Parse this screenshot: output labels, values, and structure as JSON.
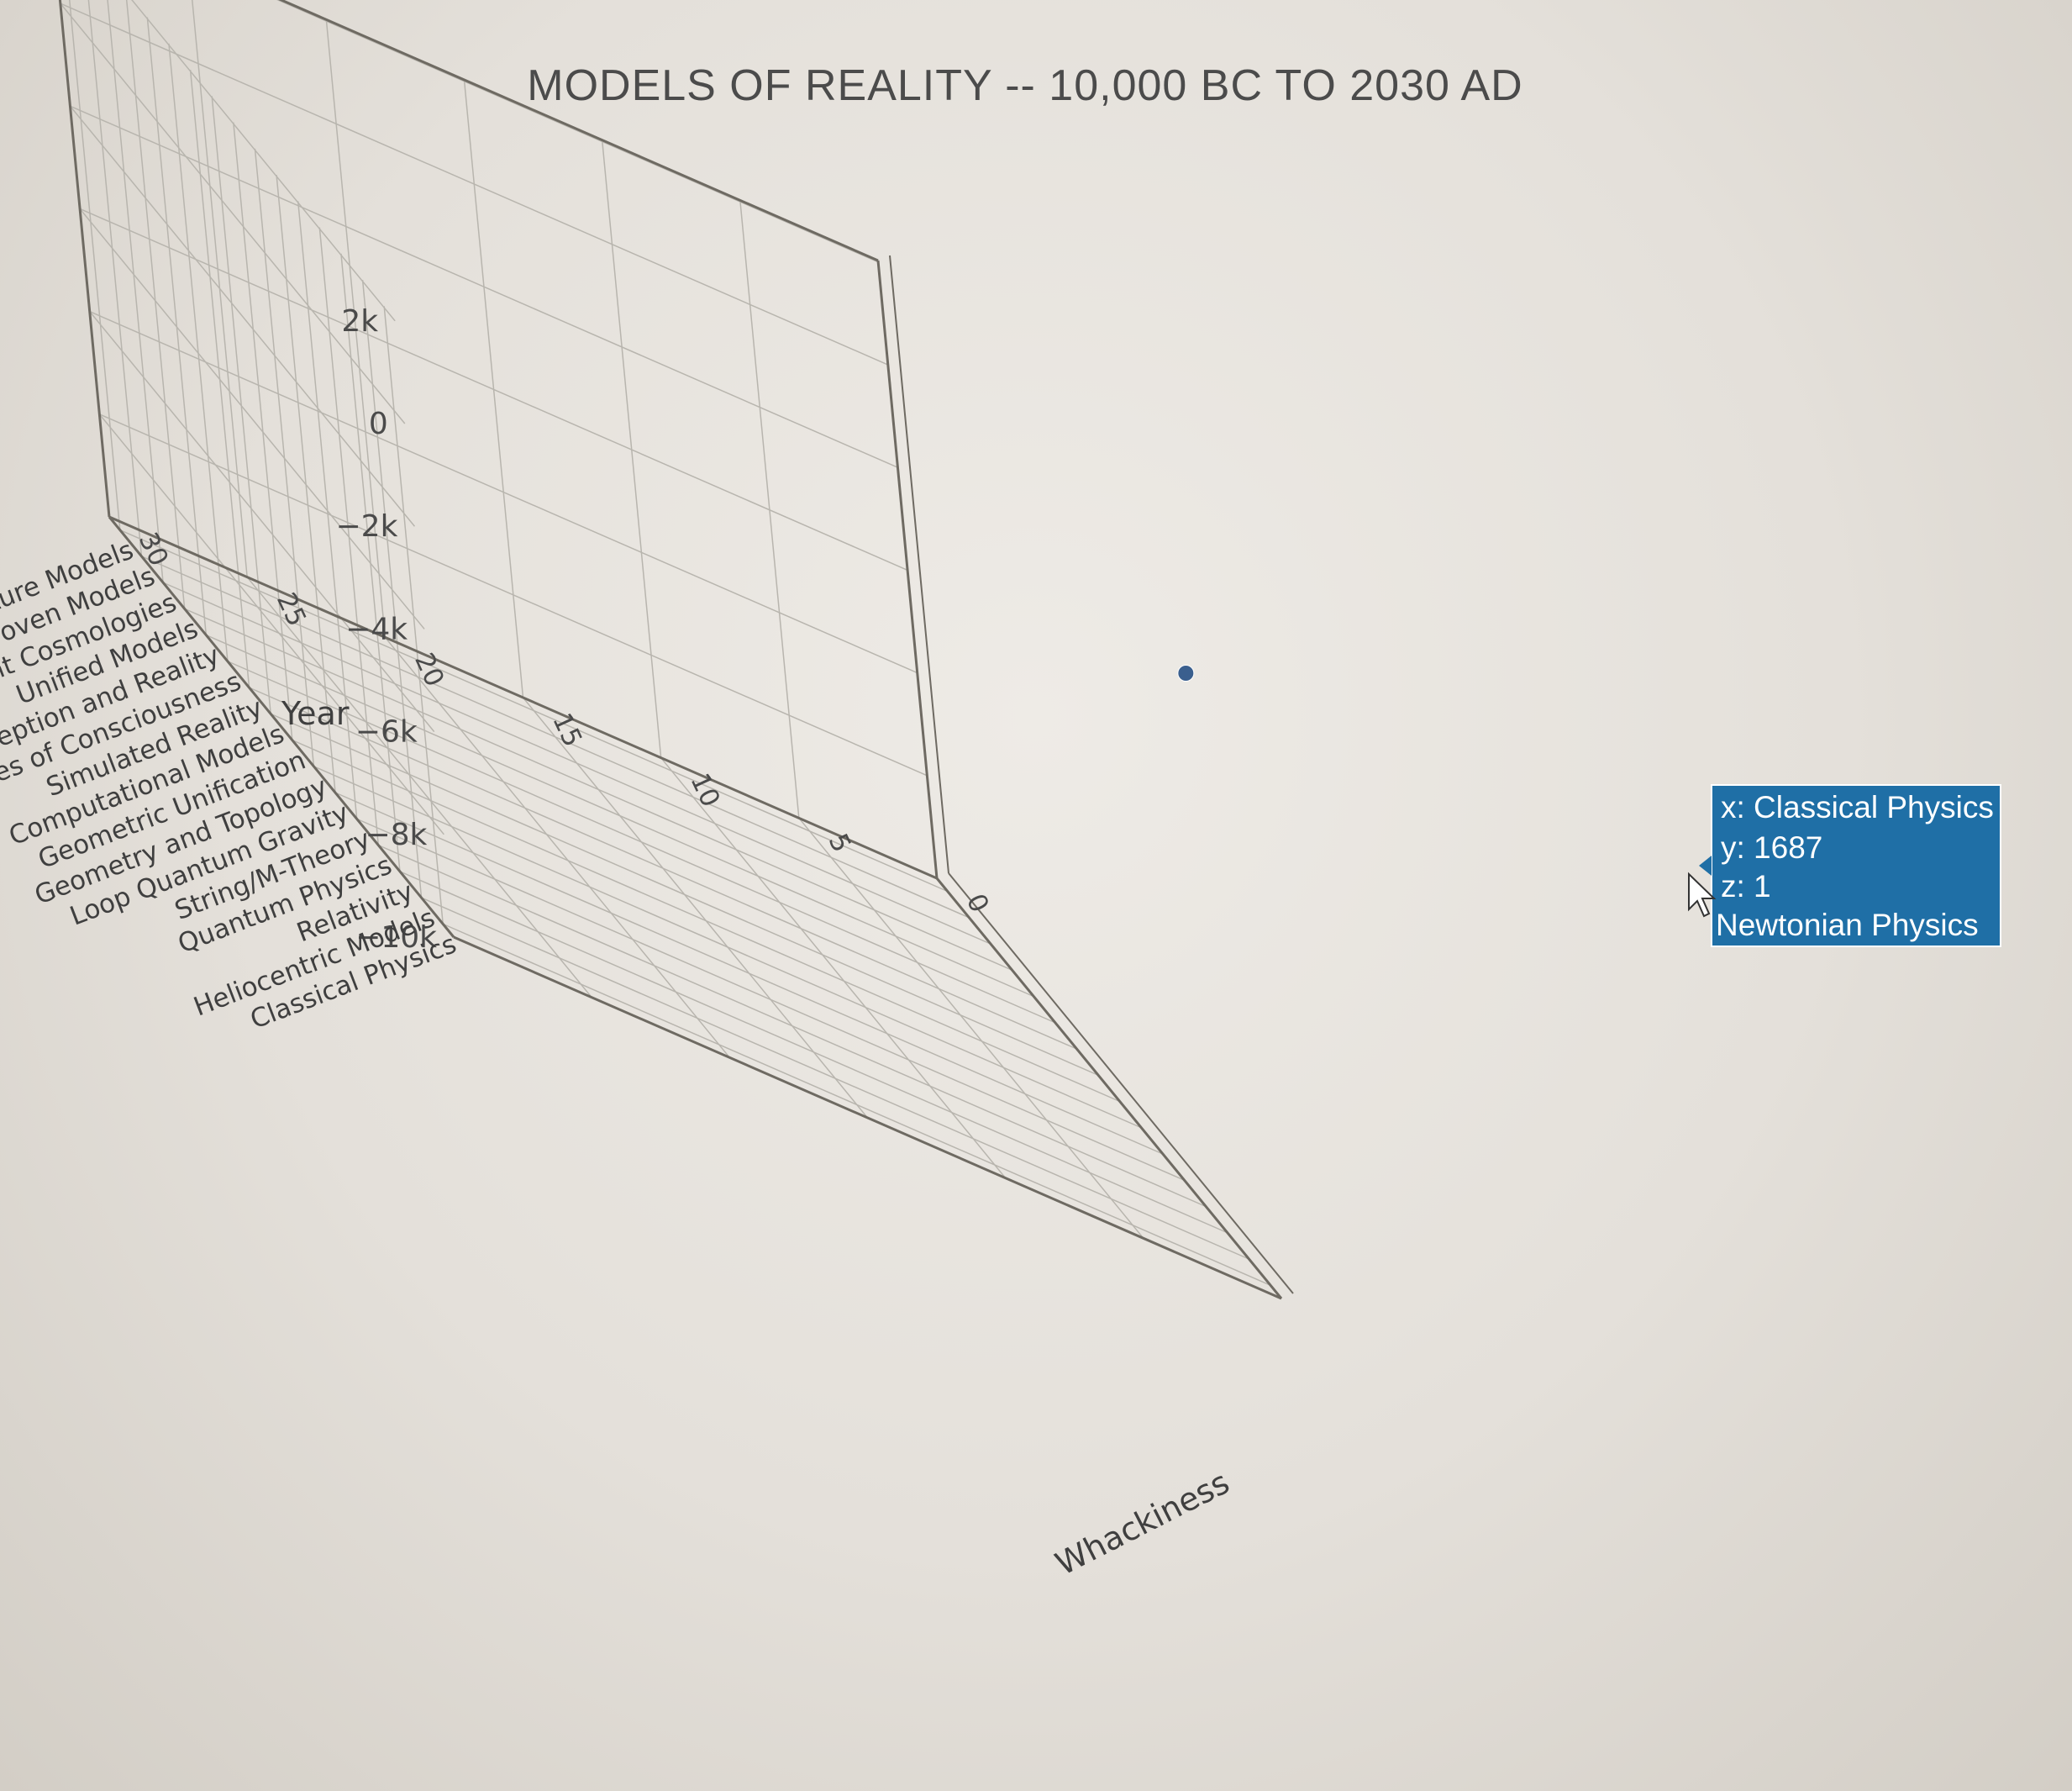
{
  "chart_data": {
    "type": "scatter",
    "title": "MODELS OF REALITY -- 10,000 BC TO 2030 AD",
    "axes": {
      "x": {
        "label": "",
        "categories": [
          "Classical Physics",
          "Heliocentric Models",
          "Relativity",
          "Quantum Physics",
          "String/M-Theory",
          "Loop Quantum Gravity",
          "Geometry and Topology",
          "Geometric Unification",
          "Computational Models",
          "Simulated Reality",
          "Theories of Consciousness",
          "Perception and Reality",
          "Unified Models",
          "Ancient Cosmologies",
          "Disproven Models",
          "Future Models"
        ]
      },
      "y": {
        "label": "Year",
        "range": [
          -10000,
          2030
        ],
        "ticks": [
          2000,
          0,
          -2000,
          -4000,
          -6000,
          -8000,
          -10000
        ],
        "tick_labels": [
          "2k",
          "0",
          "−2k",
          "−4k",
          "−6k",
          "−8k",
          "−10k"
        ]
      },
      "z": {
        "label": "Whackiness",
        "range": [
          0,
          30
        ],
        "ticks": [
          0,
          5,
          10,
          15,
          20,
          25,
          30
        ],
        "tick_labels": [
          "0",
          "5",
          "10",
          "15",
          "20",
          "25",
          "30"
        ]
      }
    },
    "series": [
      {
        "marker_color": "#3a5f8e",
        "points": [
          {
            "x": "Classical Physics",
            "y": 1687,
            "z": 1,
            "name": "Newtonian Physics"
          }
        ]
      }
    ],
    "hover": {
      "x_line": "x: Classical Physics",
      "y_line": "y: 1687",
      "z_line": "z: 1",
      "name_line": "Newtonian Physics",
      "bg": "#1f6fa6"
    },
    "colors": {
      "marker": "#3a5f8e",
      "grid": "#b8b5ae",
      "frame": "#6e6a62",
      "background": "#e9e6e1"
    }
  }
}
